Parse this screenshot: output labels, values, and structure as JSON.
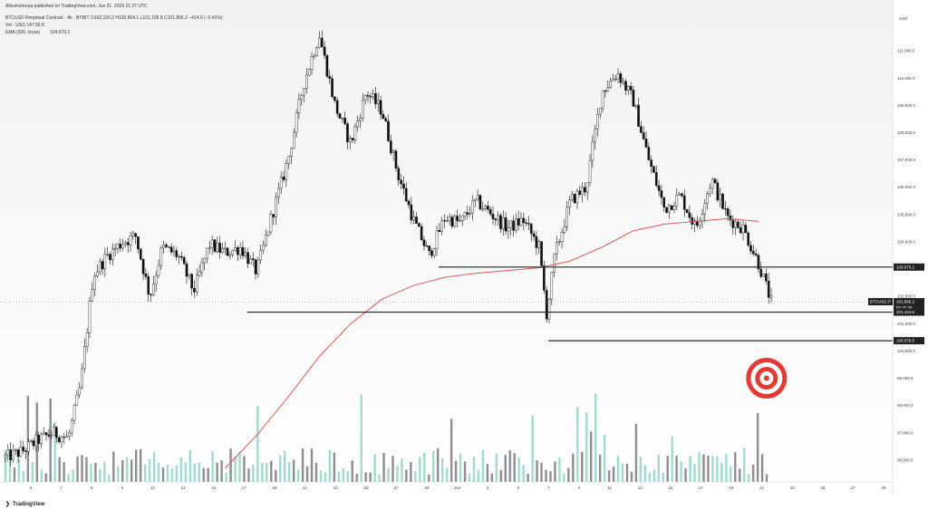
{
  "header": {
    "published": "Altcoinsherpa published on TradingView.com, Jun 21, 2025 21:27 UTC",
    "symbol_line": "BTCUSD Perpetual Contract · 4h · BYBIT  O102,220.2  H102,854.1  L101,195.8  C101,806.2  −414.0 (−0.41%)",
    "vol_line": "Vol · USD  147.56 K",
    "ema_label": "EMA (200, close)",
    "ema_value": "104,679.1"
  },
  "footer": {
    "brand": "TradingView"
  },
  "colors": {
    "up": "#ffffff",
    "down": "#111111",
    "ema": "#e05a5a",
    "level": "#222222",
    "target": "#e53935",
    "vol_up": "#8fd3cb",
    "vol_down": "#7a7a7a",
    "bg_top": "#f4f4f4",
    "bg_bottom": "#ffffff"
  },
  "chart_data": {
    "type": "candlestick",
    "title": "",
    "xlabel": "",
    "ylabel": "",
    "currency": "USD",
    "ylim": [
      95200,
      112400
    ],
    "grid": false,
    "x_ticks": [
      "6",
      "7",
      "8",
      "9",
      "12",
      "13",
      "15",
      "17",
      "19",
      "21",
      "23",
      "25",
      "27",
      "29",
      "Jun",
      "3",
      "5",
      "7",
      "9",
      "11",
      "13",
      "15",
      "17",
      "19",
      "21",
      "23",
      "25",
      "27",
      "29"
    ],
    "y_ticks": [
      "111,000.0",
      "110,000.0",
      "109,000.0",
      "108,000.0",
      "107,000.0",
      "106,000.0",
      "105,000.0",
      "104,000.0",
      "103,000.0",
      "102,000.0",
      "101,000.0",
      "100,000.0",
      "99,000.0",
      "98,000.0",
      "97,000.0",
      "96,000.0"
    ],
    "price_tags": [
      {
        "label": "BTCUSD.P",
        "value": "101,806.2",
        "sub": "02:32:26",
        "price": 101806,
        "dark": true
      },
      {
        "label": "",
        "value": "103,075.2",
        "price": 103075,
        "dark": true
      },
      {
        "label": "",
        "value": "101,424.6",
        "price": 101424,
        "dark": true
      },
      {
        "label": "",
        "value": "100,376.0",
        "price": 100376,
        "dark": true
      }
    ],
    "levels": [
      {
        "price": 103075,
        "from_day": 27.6,
        "to_day": 49.0
      },
      {
        "price": 101424,
        "from_day": 15.4,
        "to_day": 49.0
      },
      {
        "price": 100376,
        "from_day": 34.6,
        "to_day": 49.0
      }
    ],
    "target_price": 99000,
    "target_day": 48.5,
    "ema_path": [
      {
        "day": 14.0,
        "price": 95700
      },
      {
        "day": 16.0,
        "price": 96900
      },
      {
        "day": 18.0,
        "price": 98300
      },
      {
        "day": 20.0,
        "price": 99800
      },
      {
        "day": 22.0,
        "price": 101000
      },
      {
        "day": 24.0,
        "price": 101900
      },
      {
        "day": 26.0,
        "price": 102400
      },
      {
        "day": 28.0,
        "price": 102700
      },
      {
        "day": 30.0,
        "price": 102850
      },
      {
        "day": 32.0,
        "price": 102950
      },
      {
        "day": 34.0,
        "price": 103050
      },
      {
        "day": 36.0,
        "price": 103300
      },
      {
        "day": 38.0,
        "price": 103800
      },
      {
        "day": 40.0,
        "price": 104400
      },
      {
        "day": 42.0,
        "price": 104650
      },
      {
        "day": 44.0,
        "price": 104750
      },
      {
        "day": 46.0,
        "price": 104850
      },
      {
        "day": 48.0,
        "price": 104750
      }
    ],
    "price_path": [
      {
        "day": 0.0,
        "price": 96100
      },
      {
        "day": 1.0,
        "price": 96300
      },
      {
        "day": 2.0,
        "price": 96700
      },
      {
        "day": 3.0,
        "price": 97000
      },
      {
        "day": 4.0,
        "price": 96800
      },
      {
        "day": 4.8,
        "price": 98800
      },
      {
        "day": 5.6,
        "price": 102800
      },
      {
        "day": 6.5,
        "price": 103500
      },
      {
        "day": 7.5,
        "price": 104000
      },
      {
        "day": 8.3,
        "price": 104200
      },
      {
        "day": 9.2,
        "price": 102000
      },
      {
        "day": 10.0,
        "price": 103800
      },
      {
        "day": 11.0,
        "price": 103500
      },
      {
        "day": 12.0,
        "price": 102200
      },
      {
        "day": 13.0,
        "price": 103900
      },
      {
        "day": 14.0,
        "price": 103600
      },
      {
        "day": 15.0,
        "price": 103800
      },
      {
        "day": 16.0,
        "price": 102900
      },
      {
        "day": 17.0,
        "price": 105000
      },
      {
        "day": 18.0,
        "price": 107000
      },
      {
        "day": 19.0,
        "price": 109800
      },
      {
        "day": 20.0,
        "price": 111600
      },
      {
        "day": 21.0,
        "price": 109000
      },
      {
        "day": 22.0,
        "price": 107600
      },
      {
        "day": 23.0,
        "price": 109500
      },
      {
        "day": 24.0,
        "price": 108800
      },
      {
        "day": 25.0,
        "price": 106500
      },
      {
        "day": 26.0,
        "price": 104800
      },
      {
        "day": 27.0,
        "price": 103500
      },
      {
        "day": 28.0,
        "price": 104900
      },
      {
        "day": 29.0,
        "price": 104700
      },
      {
        "day": 30.0,
        "price": 105500
      },
      {
        "day": 31.0,
        "price": 105000
      },
      {
        "day": 32.0,
        "price": 104500
      },
      {
        "day": 33.0,
        "price": 104800
      },
      {
        "day": 34.0,
        "price": 103800
      },
      {
        "day": 34.5,
        "price": 101300
      },
      {
        "day": 35.0,
        "price": 103500
      },
      {
        "day": 36.0,
        "price": 105500
      },
      {
        "day": 37.0,
        "price": 106000
      },
      {
        "day": 38.0,
        "price": 109500
      },
      {
        "day": 39.0,
        "price": 110200
      },
      {
        "day": 40.0,
        "price": 109200
      },
      {
        "day": 41.0,
        "price": 107000
      },
      {
        "day": 42.0,
        "price": 105200
      },
      {
        "day": 43.0,
        "price": 105700
      },
      {
        "day": 44.0,
        "price": 104500
      },
      {
        "day": 45.0,
        "price": 106300
      },
      {
        "day": 46.0,
        "price": 104900
      },
      {
        "day": 47.0,
        "price": 104500
      },
      {
        "day": 48.0,
        "price": 103200
      },
      {
        "day": 48.8,
        "price": 101800
      }
    ],
    "volume_bars": 170
  }
}
